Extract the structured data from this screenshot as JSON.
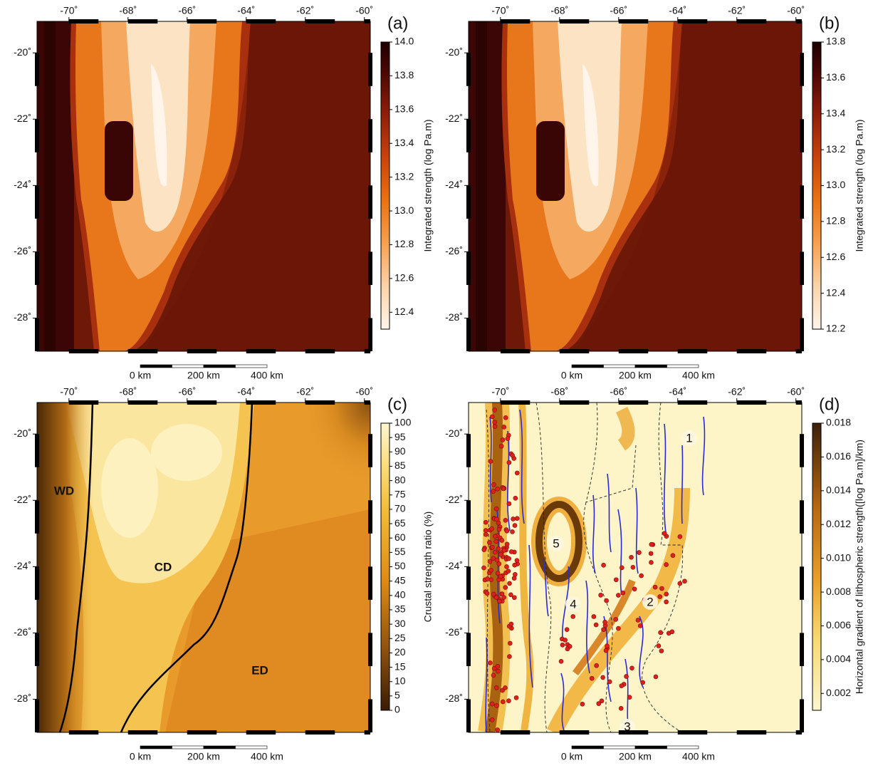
{
  "panels": [
    {
      "label": "(a)",
      "xlim": [
        -71.08,
        -59.8
      ],
      "ylim": [
        -29.0,
        -19.05
      ],
      "lon_ticks": [
        {
          "value": -70,
          "label": "-70˚"
        },
        {
          "value": -68,
          "label": "-68˚"
        },
        {
          "value": -66,
          "label": "-66˚"
        },
        {
          "value": -64,
          "label": "-64˚"
        },
        {
          "value": -62,
          "label": "-62˚"
        },
        {
          "value": -60,
          "label": "-60˚"
        }
      ],
      "lat_ticks": [
        {
          "value": -20,
          "label": "-20˚"
        },
        {
          "value": -22,
          "label": "-22˚"
        },
        {
          "value": -24,
          "label": "-24˚"
        },
        {
          "value": -26,
          "label": "-26˚"
        },
        {
          "value": -28,
          "label": "-28˚"
        }
      ],
      "colorbar": {
        "title": "Integrated strength (log Pa.m)",
        "range": [
          12.3,
          14.0
        ],
        "ticks": [
          12.4,
          12.6,
          12.8,
          {
            "value": 13.0,
            "label": "13.0"
          },
          13.2,
          13.4,
          13.6,
          13.8,
          {
            "value": 14.0,
            "label": "14.0"
          }
        ]
      },
      "scalebar": [
        "0 km",
        "200 km",
        "400 km"
      ]
    },
    {
      "label": "(b)",
      "xlim": [
        -71.08,
        -59.8
      ],
      "ylim": [
        -29.0,
        -19.05
      ],
      "lon_ticks": [
        {
          "value": -70,
          "label": "-70˚"
        },
        {
          "value": -68,
          "label": "-68˚"
        },
        {
          "value": -66,
          "label": "-66˚"
        },
        {
          "value": -64,
          "label": "-64˚"
        },
        {
          "value": -62,
          "label": "-62˚"
        },
        {
          "value": -60,
          "label": "-60˚"
        }
      ],
      "lat_ticks": [
        {
          "value": -20,
          "label": "-20˚"
        },
        {
          "value": -22,
          "label": "-22˚"
        },
        {
          "value": -24,
          "label": "-24˚"
        },
        {
          "value": -26,
          "label": "-26˚"
        },
        {
          "value": -28,
          "label": "-28˚"
        }
      ],
      "colorbar": {
        "title": "Integrated strength (log Pa.m)",
        "range": [
          12.2,
          13.8
        ],
        "ticks": [
          12.2,
          12.4,
          12.6,
          12.8,
          {
            "value": 13.0,
            "label": "13.0"
          },
          13.2,
          13.4,
          13.6,
          13.8
        ]
      },
      "scalebar": [
        "0 km",
        "200 km",
        "400 km"
      ]
    },
    {
      "label": "(c)",
      "xlim": [
        -71.08,
        -59.8
      ],
      "ylim": [
        -29.0,
        -19.05
      ],
      "lon_ticks": [
        {
          "value": -70,
          "label": "-70˚"
        },
        {
          "value": -68,
          "label": "-68˚"
        },
        {
          "value": -66,
          "label": "-66˚"
        },
        {
          "value": -64,
          "label": "-64˚"
        },
        {
          "value": -62,
          "label": "-62˚"
        },
        {
          "value": -60,
          "label": "-60˚"
        }
      ],
      "lat_ticks": [
        {
          "value": -20,
          "label": "-20˚"
        },
        {
          "value": -22,
          "label": "-22˚"
        },
        {
          "value": -24,
          "label": "-24˚"
        },
        {
          "value": -26,
          "label": "-26˚"
        },
        {
          "value": -28,
          "label": "-28˚"
        }
      ],
      "colorbar": {
        "title": "Crustal strength ratio (%)",
        "range": [
          0,
          100
        ],
        "ticks": [
          0,
          5,
          10,
          15,
          20,
          25,
          30,
          35,
          40,
          45,
          50,
          55,
          60,
          65,
          70,
          75,
          80,
          85,
          90,
          95,
          100
        ]
      },
      "scalebar": [
        "0 km",
        "200 km",
        "400 km"
      ],
      "annotations": [
        "WD",
        "CD",
        "ED"
      ]
    },
    {
      "label": "(d)",
      "xlim": [
        -71.08,
        -59.8
      ],
      "ylim": [
        -29.0,
        -19.05
      ],
      "lon_ticks": [
        {
          "value": -70,
          "label": "-70˚"
        },
        {
          "value": -68,
          "label": "-68˚"
        },
        {
          "value": -66,
          "label": "-66˚"
        },
        {
          "value": -64,
          "label": "-64˚"
        },
        {
          "value": -62,
          "label": "-62˚"
        },
        {
          "value": -60,
          "label": "-60˚"
        }
      ],
      "lat_ticks": [
        {
          "value": -20,
          "label": "-20˚"
        },
        {
          "value": -22,
          "label": "-22˚"
        },
        {
          "value": -24,
          "label": "-24˚"
        },
        {
          "value": -26,
          "label": "-26˚"
        },
        {
          "value": -28,
          "label": "-28˚"
        }
      ],
      "colorbar": {
        "title": "Horizontal gradient of lithospheric strength([log Pa.m]/km)",
        "range": [
          0.001,
          0.018
        ],
        "ticks": [
          0.002,
          0.004,
          0.006,
          0.008,
          {
            "value": 0.01,
            "label": "0.010"
          },
          0.012,
          0.014,
          0.016,
          0.018
        ]
      },
      "scalebar": [
        "0 km",
        "200 km",
        "400 km"
      ],
      "annotations": [
        "1",
        "2",
        "3",
        "4",
        "5"
      ]
    }
  ]
}
